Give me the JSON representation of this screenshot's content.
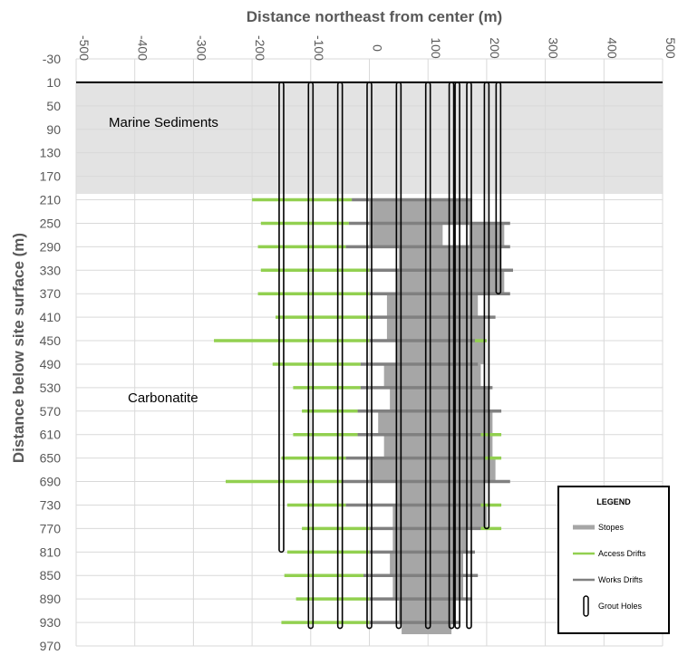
{
  "chart_data": {
    "type": "cross-section",
    "title": "",
    "xlabel": "Distance northeast from center (m)",
    "ylabel": "Distance below site surface (m)",
    "xlim": [
      -500,
      500
    ],
    "ylim": [
      -30,
      970
    ],
    "x_ticks": [
      -500,
      -400,
      -300,
      -200,
      -100,
      0,
      100,
      200,
      300,
      400,
      500
    ],
    "y_ticks": [
      -30,
      10,
      50,
      90,
      130,
      170,
      210,
      250,
      290,
      330,
      370,
      410,
      450,
      490,
      530,
      570,
      610,
      650,
      690,
      730,
      770,
      810,
      850,
      890,
      930,
      970
    ],
    "x_axis_position": "top",
    "y_axis_reversed": true,
    "grid": true,
    "regions": [
      {
        "label": "Marine Sediments",
        "x": [
          -500,
          500
        ],
        "depth": [
          10,
          200
        ],
        "color": "#e3e3e3"
      },
      {
        "label": "Carbonatite",
        "x": [
          -500,
          500
        ],
        "depth": [
          200,
          970
        ],
        "color": "#ffffff"
      }
    ],
    "surface_depth": 10,
    "stopes": [
      {
        "depth": [
          210,
          250
        ],
        "x": [
          0,
          175
        ]
      },
      {
        "depth": [
          250,
          290
        ],
        "x": [
          0,
          125
        ]
      },
      {
        "depth": [
          250,
          290
        ],
        "x": [
          170,
          230
        ]
      },
      {
        "depth": [
          290,
          330
        ],
        "x": [
          50,
          225
        ]
      },
      {
        "depth": [
          330,
          370
        ],
        "x": [
          45,
          230
        ]
      },
      {
        "depth": [
          370,
          410
        ],
        "x": [
          30,
          185
        ]
      },
      {
        "depth": [
          410,
          450
        ],
        "x": [
          30,
          195
        ]
      },
      {
        "depth": [
          450,
          490
        ],
        "x": [
          45,
          195
        ]
      },
      {
        "depth": [
          490,
          530
        ],
        "x": [
          25,
          190
        ]
      },
      {
        "depth": [
          530,
          570
        ],
        "x": [
          35,
          205
        ]
      },
      {
        "depth": [
          570,
          610
        ],
        "x": [
          15,
          210
        ]
      },
      {
        "depth": [
          610,
          650
        ],
        "x": [
          25,
          210
        ]
      },
      {
        "depth": [
          650,
          690
        ],
        "x": [
          0,
          215
        ]
      },
      {
        "depth": [
          690,
          730
        ],
        "x": [
          45,
          195
        ]
      },
      {
        "depth": [
          730,
          770
        ],
        "x": [
          40,
          200
        ]
      },
      {
        "depth": [
          770,
          810
        ],
        "x": [
          40,
          165
        ]
      },
      {
        "depth": [
          810,
          850
        ],
        "x": [
          35,
          160
        ]
      },
      {
        "depth": [
          850,
          890
        ],
        "x": [
          40,
          160
        ]
      },
      {
        "depth": [
          890,
          930
        ],
        "x": [
          50,
          145
        ]
      },
      {
        "depth": [
          930,
          950
        ],
        "x": [
          55,
          140
        ]
      }
    ],
    "access_drifts": [
      {
        "depth": 210,
        "x": [
          -200,
          -30
        ]
      },
      {
        "depth": 250,
        "x": [
          -185,
          -35
        ]
      },
      {
        "depth": 290,
        "x": [
          -190,
          -40
        ]
      },
      {
        "depth": 330,
        "x": [
          -185,
          0
        ]
      },
      {
        "depth": 370,
        "x": [
          -190,
          0
        ]
      },
      {
        "depth": 410,
        "x": [
          -160,
          0
        ]
      },
      {
        "depth": 450,
        "x": [
          -265,
          0
        ]
      },
      {
        "depth": 490,
        "x": [
          -165,
          -15
        ]
      },
      {
        "depth": 530,
        "x": [
          -130,
          -15
        ]
      },
      {
        "depth": 570,
        "x": [
          -115,
          -20
        ]
      },
      {
        "depth": 610,
        "x": [
          -130,
          -20
        ]
      },
      {
        "depth": 650,
        "x": [
          -150,
          -40
        ]
      },
      {
        "depth": 690,
        "x": [
          -245,
          -45
        ]
      },
      {
        "depth": 730,
        "x": [
          -140,
          -40
        ]
      },
      {
        "depth": 770,
        "x": [
          -115,
          0
        ]
      },
      {
        "depth": 810,
        "x": [
          -140,
          0
        ]
      },
      {
        "depth": 850,
        "x": [
          -145,
          -10
        ]
      },
      {
        "depth": 890,
        "x": [
          -125,
          0
        ]
      },
      {
        "depth": 930,
        "x": [
          -150,
          0
        ]
      },
      {
        "depth": 450,
        "x": [
          180,
          200
        ]
      },
      {
        "depth": 610,
        "x": [
          190,
          225
        ]
      },
      {
        "depth": 650,
        "x": [
          195,
          225
        ]
      },
      {
        "depth": 730,
        "x": [
          190,
          225
        ]
      },
      {
        "depth": 770,
        "x": [
          190,
          225
        ]
      }
    ],
    "works_drifts": [
      {
        "depth": 210,
        "x": [
          -30,
          175
        ]
      },
      {
        "depth": 250,
        "x": [
          -35,
          240
        ]
      },
      {
        "depth": 290,
        "x": [
          -40,
          240
        ]
      },
      {
        "depth": 330,
        "x": [
          0,
          245
        ]
      },
      {
        "depth": 370,
        "x": [
          0,
          240
        ]
      },
      {
        "depth": 410,
        "x": [
          0,
          215
        ]
      },
      {
        "depth": 450,
        "x": [
          0,
          180
        ]
      },
      {
        "depth": 490,
        "x": [
          -15,
          185
        ]
      },
      {
        "depth": 530,
        "x": [
          -15,
          210
        ]
      },
      {
        "depth": 570,
        "x": [
          -20,
          225
        ]
      },
      {
        "depth": 610,
        "x": [
          -20,
          190
        ]
      },
      {
        "depth": 650,
        "x": [
          -40,
          195
        ]
      },
      {
        "depth": 690,
        "x": [
          -45,
          240
        ]
      },
      {
        "depth": 730,
        "x": [
          -40,
          190
        ]
      },
      {
        "depth": 770,
        "x": [
          0,
          190
        ]
      },
      {
        "depth": 810,
        "x": [
          0,
          180
        ]
      },
      {
        "depth": 850,
        "x": [
          -10,
          185
        ]
      },
      {
        "depth": 890,
        "x": [
          0,
          175
        ]
      },
      {
        "depth": 930,
        "x": [
          0,
          155
        ]
      }
    ],
    "grout_holes": [
      {
        "x": -150,
        "bottom": 810
      },
      {
        "x": -100,
        "bottom": 940
      },
      {
        "x": -50,
        "bottom": 940
      },
      {
        "x": 0,
        "bottom": 940
      },
      {
        "x": 50,
        "bottom": 940
      },
      {
        "x": 100,
        "bottom": 940
      },
      {
        "x": 140,
        "bottom": 940
      },
      {
        "x": 150,
        "bottom": 940
      },
      {
        "x": 170,
        "bottom": 940
      },
      {
        "x": 200,
        "bottom": 770
      },
      {
        "x": 220,
        "bottom": 370
      }
    ],
    "colors": {
      "stopes": "#a6a6a6",
      "access_drifts": "#92d050",
      "works_drifts": "#808080",
      "grout_holes": "#000000",
      "sediments": "#e3e3e3"
    },
    "legend": {
      "title": "LEGEND",
      "placement": "bottom-right",
      "items": [
        {
          "label": "Stopes",
          "symbol": "stopes"
        },
        {
          "label": "Access Drifts",
          "symbol": "access_drifts"
        },
        {
          "label": "Works Drifts",
          "symbol": "works_drifts"
        },
        {
          "label": "Grout Holes",
          "symbol": "grout_holes"
        }
      ]
    }
  }
}
